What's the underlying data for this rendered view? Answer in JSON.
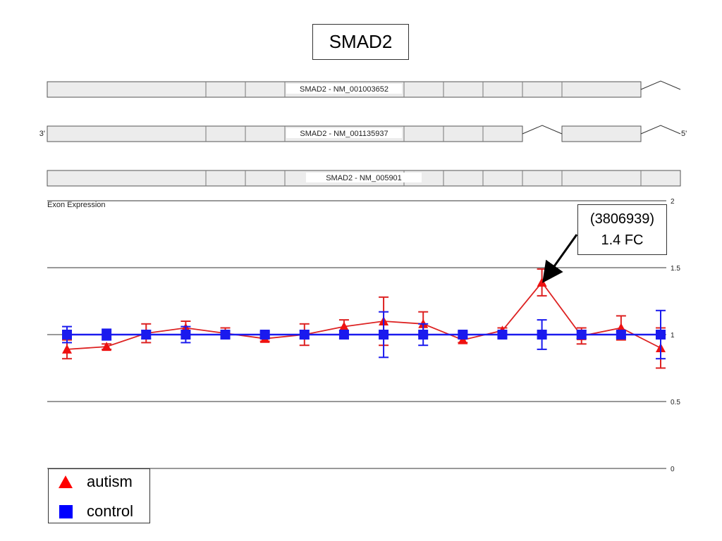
{
  "page_title": "SMAD2",
  "transcripts": [
    {
      "label": "SMAD2 - NM_001003652",
      "left_end": "",
      "right_end": ""
    },
    {
      "label": "SMAD2 - NM_001135937",
      "left_end": "3'",
      "right_end": "5'"
    },
    {
      "label": "SMAD2 - NM_005901",
      "left_end": "",
      "right_end": ""
    }
  ],
  "panel_label": "Exon Expression",
  "annotation": {
    "line1": "(3806939)",
    "line2": "1.4 FC"
  },
  "legend": [
    {
      "label": "autism",
      "color": "#ff0000",
      "marker": "triangle"
    },
    {
      "label": "control",
      "color": "#0000ff",
      "marker": "square"
    }
  ],
  "chart_data": {
    "type": "line",
    "title": "",
    "xlabel": "",
    "ylabel": "",
    "ylim": [
      0,
      2
    ],
    "yticks": [
      "0",
      "0.5",
      "1",
      "1.5",
      "2"
    ],
    "ytick_values": [
      0,
      0.5,
      1,
      1.5,
      2
    ],
    "grid": true,
    "legend_position": "bottom-left",
    "x": [
      1,
      2,
      3,
      4,
      5,
      6,
      7,
      8,
      9,
      10,
      11,
      12,
      13,
      14,
      15,
      16
    ],
    "series": [
      {
        "name": "autism",
        "color": "#dd2222",
        "marker": "triangle",
        "values": [
          0.89,
          0.91,
          1.01,
          1.05,
          1.01,
          0.97,
          1.0,
          1.06,
          1.1,
          1.08,
          0.96,
          1.03,
          1.39,
          0.99,
          1.05,
          0.9
        ],
        "err": [
          0.07,
          0.02,
          0.07,
          0.05,
          0.04,
          0.02,
          0.08,
          0.05,
          0.18,
          0.09,
          0.02,
          0.02,
          0.1,
          0.06,
          0.09,
          0.15
        ]
      },
      {
        "name": "control",
        "color": "#1a1aee",
        "marker": "square",
        "values": [
          1.0,
          1.0,
          1.0,
          1.0,
          1.0,
          1.0,
          1.0,
          1.0,
          1.0,
          1.0,
          1.0,
          1.0,
          1.0,
          1.0,
          1.0,
          1.0
        ],
        "err": [
          0.06,
          0.04,
          0.03,
          0.06,
          0.02,
          0.02,
          0.03,
          0.03,
          0.17,
          0.08,
          0.02,
          0.02,
          0.11,
          0.03,
          0.02,
          0.18
        ]
      }
    ],
    "highlight_index": 12
  }
}
